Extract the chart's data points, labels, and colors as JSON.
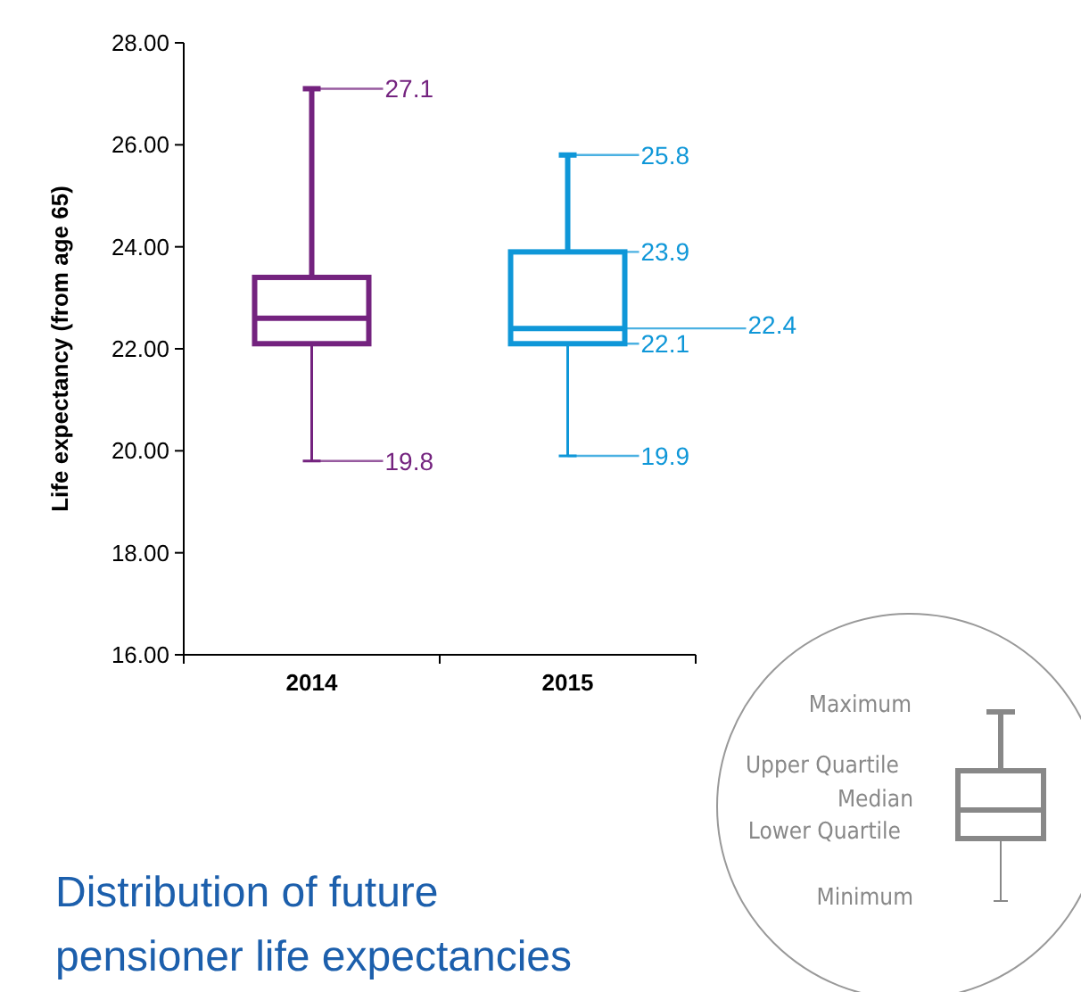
{
  "chart_data": {
    "type": "box",
    "title": "Distribution of future pensioner life expectancies",
    "ylabel": "Life expectancy (from age 65)",
    "categories": [
      "2014",
      "2015"
    ],
    "boxes": [
      {
        "low": 19.8,
        "q1": 22.1,
        "median": 22.6,
        "q3": 23.4,
        "high": 27.1
      },
      {
        "low": 19.9,
        "q1": 22.1,
        "median": 22.4,
        "q3": 23.9,
        "high": 25.8
      }
    ],
    "colors": [
      "#74237f",
      "#0f97d8"
    ],
    "ylim": [
      16,
      28
    ],
    "yticks": [
      {
        "value": 16,
        "label": "16.00"
      },
      {
        "value": 18,
        "label": "18.00"
      },
      {
        "value": 20,
        "label": "20.00"
      },
      {
        "value": 22,
        "label": "22.00"
      },
      {
        "value": 24,
        "label": "24.00"
      },
      {
        "value": 26,
        "label": "26.00"
      },
      {
        "value": 28,
        "label": "28.00"
      }
    ],
    "grid": false,
    "annotations": [
      {
        "text": "27.1",
        "x": "2014",
        "y": 27.1
      },
      {
        "text": "19.8",
        "x": "2014",
        "y": 19.8
      },
      {
        "text": "25.8",
        "x": "2015",
        "y": 25.8
      },
      {
        "text": "23.9",
        "x": "2015",
        "y": 23.9
      },
      {
        "text": "22.1",
        "x": "2015",
        "y": 22.1
      },
      {
        "text": "22.4",
        "x": "2015",
        "y": 22.4
      },
      {
        "text": "19.9",
        "x": "2015",
        "y": 19.9
      },
      "Maximum",
      "Upper Quartile",
      "Median",
      "Lower Quartile",
      "Minimum"
    ]
  }
}
